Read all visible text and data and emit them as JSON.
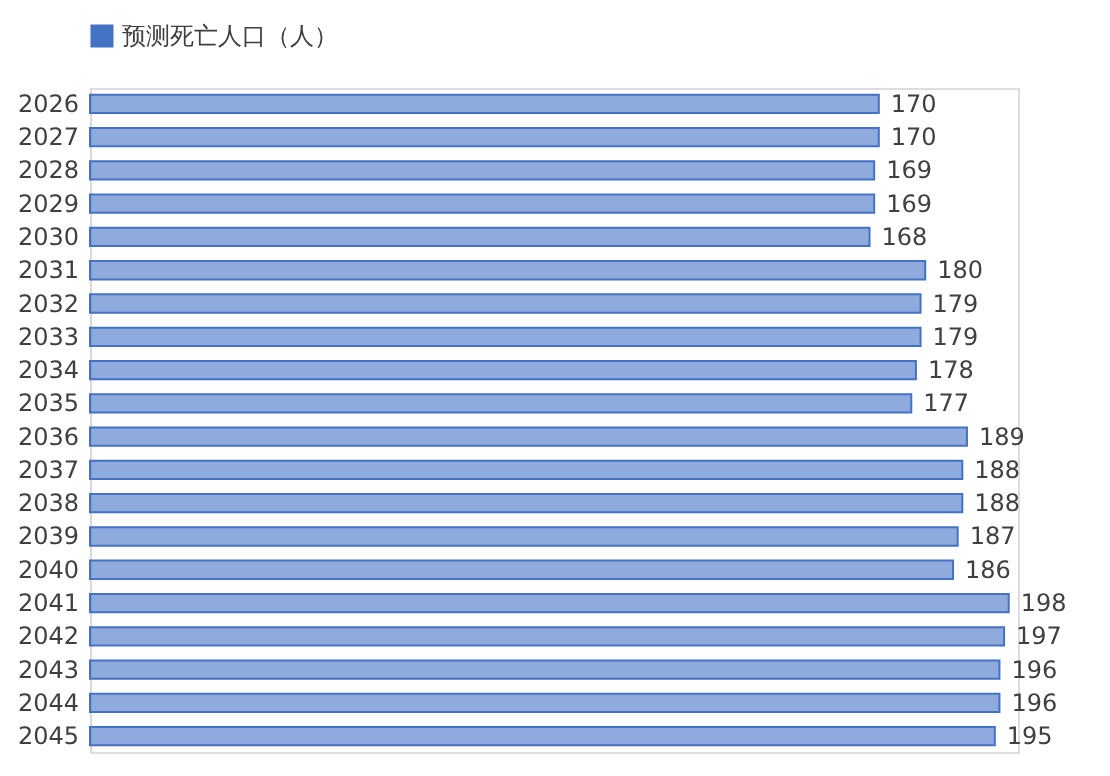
{
  "chart_data": {
    "type": "bar",
    "orientation": "horizontal",
    "categories": [
      "2026",
      "2027",
      "2028",
      "2029",
      "2030",
      "2031",
      "2032",
      "2033",
      "2034",
      "2035",
      "2036",
      "2037",
      "2038",
      "2039",
      "2040",
      "2041",
      "2042",
      "2043",
      "2044",
      "2045"
    ],
    "series": [
      {
        "name": "预测死亡人口（人）",
        "color": "#4472c4",
        "values": [
          170,
          170,
          169,
          169,
          168,
          180,
          179,
          179,
          178,
          177,
          189,
          188,
          188,
          187,
          186,
          198,
          197,
          196,
          196,
          195
        ]
      }
    ],
    "data_labels": true,
    "legend": "top",
    "grid": false,
    "tick_labels": "y"
  }
}
